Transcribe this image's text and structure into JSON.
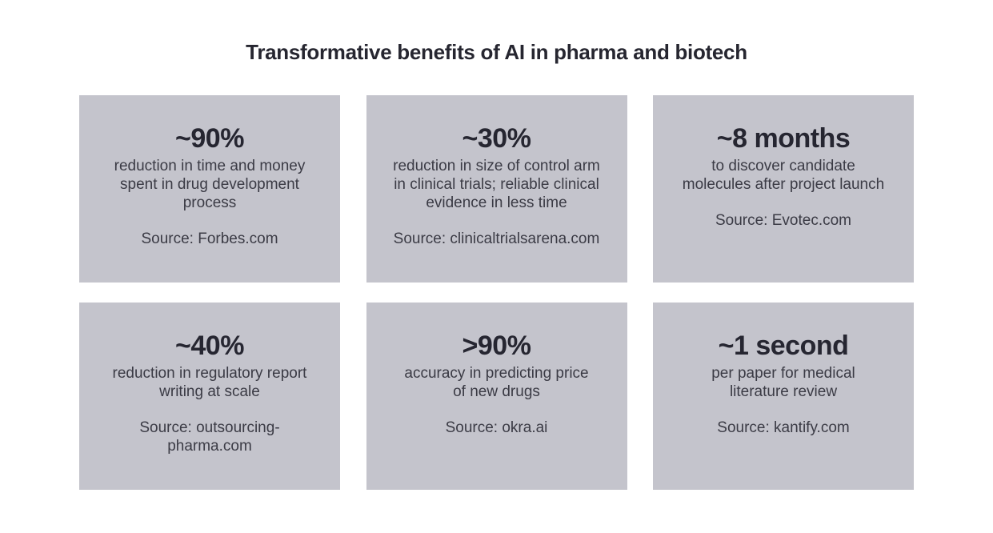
{
  "page": {
    "title": "Transformative benefits of AI in pharma and biotech"
  },
  "colors": {
    "background": "#ffffff",
    "card_background": "#c4c4cc",
    "headline_text": "#262631",
    "body_text": "#3b3b45",
    "title_text": "#262630"
  },
  "cards": [
    {
      "headline": "~90%",
      "body": "reduction in time and money\nspent in drug development\nprocess",
      "source": "Source: Forbes.com"
    },
    {
      "headline": "~30%",
      "body": "reduction in size of control arm\nin clinical trials; reliable clinical\nevidence in less time",
      "source": "Source: clinicaltrialsarena.com"
    },
    {
      "headline": "~8 months",
      "body": "to discover candidate\nmolecules after project launch",
      "source": "Source: Evotec.com"
    },
    {
      "headline": "~40%",
      "body": "reduction in regulatory report\nwriting at scale",
      "source": "Source: outsourcing-pharma.com"
    },
    {
      "headline": ">90%",
      "body": "accuracy in predicting price\nof new drugs",
      "source": "Source: okra.ai"
    },
    {
      "headline": "~1 second",
      "body": "per paper for medical\nliterature review",
      "source": "Source: kantify.com"
    }
  ]
}
